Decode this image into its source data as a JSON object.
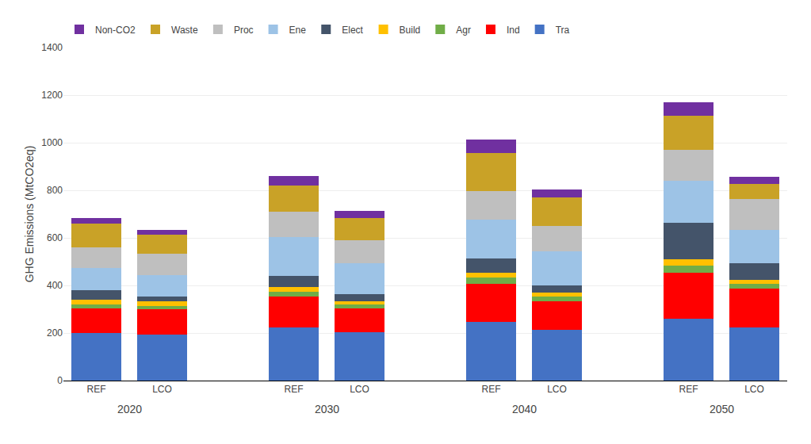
{
  "chart_data": {
    "type": "bar",
    "stacked": true,
    "categories": [
      "REF",
      "LCO",
      "REF",
      "LCO",
      "REF",
      "LCO",
      "REF",
      "LCO"
    ],
    "annotations": [
      "2020",
      "2030",
      "2040",
      "2050"
    ],
    "series": [
      {
        "name": "Tra",
        "color": "#4472C4",
        "values": [
          200,
          195,
          225,
          205,
          248,
          215,
          260,
          222
        ]
      },
      {
        "name": "Ind",
        "color": "#FF0000",
        "values": [
          105,
          105,
          130,
          100,
          160,
          120,
          195,
          165
        ]
      },
      {
        "name": "Agr",
        "color": "#70AD47",
        "values": [
          15,
          15,
          20,
          15,
          25,
          20,
          30,
          20
        ]
      },
      {
        "name": "Build",
        "color": "#FFC000",
        "values": [
          20,
          20,
          20,
          15,
          20,
          15,
          25,
          15
        ]
      },
      {
        "name": "Elect",
        "color": "#44546A",
        "values": [
          40,
          20,
          45,
          30,
          60,
          30,
          155,
          70
        ]
      },
      {
        "name": "Ene",
        "color": "#9DC3E6",
        "values": [
          95,
          90,
          165,
          130,
          165,
          145,
          175,
          140
        ]
      },
      {
        "name": "Proc",
        "color": "#BFBFBF",
        "values": [
          85,
          90,
          105,
          95,
          120,
          105,
          130,
          130
        ]
      },
      {
        "name": "Waste",
        "color": "#C9A227",
        "values": [
          100,
          80,
          110,
          95,
          160,
          120,
          145,
          65
        ]
      },
      {
        "name": "Non-CO2",
        "color": "#7030A0",
        "values": [
          25,
          20,
          40,
          30,
          55,
          35,
          55,
          30
        ]
      }
    ],
    "ylabel": "GHG Emissions (MtCO2eq)",
    "ylim": [
      0,
      1400
    ],
    "yticks": [
      0,
      200,
      400,
      600,
      800,
      1000,
      1200,
      1400
    ],
    "grid": true,
    "legend": "upper left"
  }
}
